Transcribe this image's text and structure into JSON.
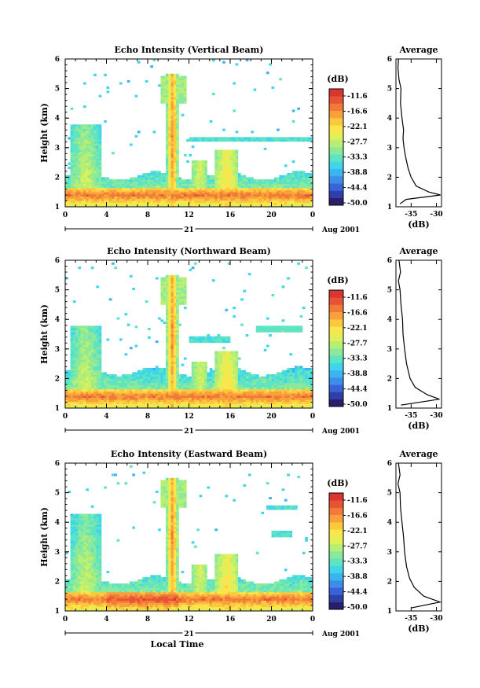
{
  "colors": {
    "scale": [
      "#2b1f6b",
      "#2f3fa8",
      "#3a63d8",
      "#3c8ee8",
      "#3cb4f0",
      "#3fd6ea",
      "#5ee4c2",
      "#8ae99a",
      "#b6ef74",
      "#dff05a",
      "#fae64a",
      "#fbc83e",
      "#f8a13a",
      "#f27a38",
      "#e85236",
      "#d8362f"
    ]
  },
  "chart_data": [
    {
      "type": "heatmap",
      "title": "Echo Intensity (Vertical Beam)",
      "ylabel": "Height (km)",
      "xlabel": "",
      "xlim": [
        0,
        24
      ],
      "ylim": [
        1,
        6
      ],
      "xticks": [
        "0",
        "4",
        "8",
        "12",
        "16",
        "20",
        "0"
      ],
      "yticks": [
        "1",
        "2",
        "3",
        "4",
        "5",
        "6"
      ],
      "date_axis": {
        "day": "21",
        "label": "Aug 2001"
      },
      "colorbar": {
        "unit": "(dB)",
        "range": [
          -53.5,
          -9.0
        ],
        "labels": [
          "-11.6",
          "-16.6",
          "-22.1",
          "-27.7",
          "-33.3",
          "-38.8",
          "-44.4",
          "-50.0"
        ]
      },
      "average": {
        "title": "Average",
        "xlabel": "(dB)",
        "xticks": [
          "-35",
          "-30"
        ],
        "xlim": [
          -38,
          -29
        ],
        "profile": [
          [
            1.1,
            -37.2
          ],
          [
            1.25,
            -36.0
          ],
          [
            1.4,
            -29.2
          ],
          [
            1.5,
            -31.5
          ],
          [
            1.7,
            -34.0
          ],
          [
            2.0,
            -35.0
          ],
          [
            2.3,
            -35.6
          ],
          [
            2.7,
            -36.1
          ],
          [
            3.0,
            -36.4
          ],
          [
            3.3,
            -36.6
          ],
          [
            3.6,
            -36.5
          ],
          [
            4.0,
            -36.8
          ],
          [
            4.5,
            -37.1
          ],
          [
            5.0,
            -37.0
          ],
          [
            5.3,
            -37.4
          ],
          [
            5.7,
            -37.6
          ],
          [
            6.0,
            -37.5
          ]
        ]
      }
    },
    {
      "type": "heatmap",
      "title": "Echo Intensity (Northward Beam)",
      "ylabel": "Height (km)",
      "xlabel": "",
      "xlim": [
        0,
        24
      ],
      "ylim": [
        1,
        6
      ],
      "xticks": [
        "0",
        "4",
        "8",
        "12",
        "16",
        "20",
        "0"
      ],
      "yticks": [
        "1",
        "2",
        "3",
        "4",
        "5",
        "6"
      ],
      "date_axis": {
        "day": "21",
        "label": "Aug 2001"
      },
      "colorbar": {
        "unit": "(dB)",
        "range": [
          -53.5,
          -9.0
        ],
        "labels": [
          "-11.6",
          "-16.6",
          "-22.1",
          "-27.7",
          "-33.3",
          "-38.8",
          "-44.4",
          "-50.0"
        ]
      },
      "average": {
        "title": "Average",
        "xlabel": "(dB)",
        "xticks": [
          "-35",
          "-30"
        ],
        "xlim": [
          -38,
          -29
        ],
        "profile": [
          [
            1.1,
            -37.0
          ],
          [
            1.3,
            -29.4
          ],
          [
            1.45,
            -31.8
          ],
          [
            1.7,
            -34.2
          ],
          [
            2.0,
            -35.2
          ],
          [
            2.5,
            -35.9
          ],
          [
            3.0,
            -36.3
          ],
          [
            3.5,
            -36.6
          ],
          [
            4.0,
            -36.7
          ],
          [
            4.5,
            -37.0
          ],
          [
            5.0,
            -37.2
          ],
          [
            5.3,
            -37.5
          ],
          [
            5.6,
            -37.1
          ],
          [
            6.0,
            -37.4
          ]
        ]
      }
    },
    {
      "type": "heatmap",
      "title": "Echo Intensity (Eastward Beam)",
      "ylabel": "Height (km)",
      "xlabel": "Local Time",
      "xlim": [
        0,
        24
      ],
      "ylim": [
        1,
        6
      ],
      "xticks": [
        "0",
        "4",
        "8",
        "12",
        "16",
        "20",
        "0"
      ],
      "yticks": [
        "1",
        "2",
        "3",
        "4",
        "5",
        "6"
      ],
      "date_axis": {
        "day": "21",
        "label": "Aug 2001"
      },
      "colorbar": {
        "unit": "(dB)",
        "range": [
          -53.5,
          -9.0
        ],
        "labels": [
          "-11.6",
          "-16.6",
          "-22.1",
          "-27.7",
          "-33.3",
          "-38.8",
          "-44.4",
          "-50.0"
        ]
      },
      "average": {
        "title": "Average",
        "xlabel": "(dB)",
        "xticks": [
          "-35",
          "-30"
        ],
        "xlim": [
          -38,
          -29
        ],
        "profile": [
          [
            1.1,
            -35.0
          ],
          [
            1.3,
            -29.3
          ],
          [
            1.5,
            -32.5
          ],
          [
            1.8,
            -34.4
          ],
          [
            2.1,
            -35.3
          ],
          [
            2.5,
            -35.9
          ],
          [
            3.0,
            -36.3
          ],
          [
            3.5,
            -36.5
          ],
          [
            4.0,
            -36.8
          ],
          [
            4.5,
            -37.1
          ],
          [
            5.0,
            -37.2
          ],
          [
            5.3,
            -37.6
          ],
          [
            5.6,
            -37.2
          ],
          [
            6.0,
            -37.5
          ]
        ]
      }
    }
  ]
}
